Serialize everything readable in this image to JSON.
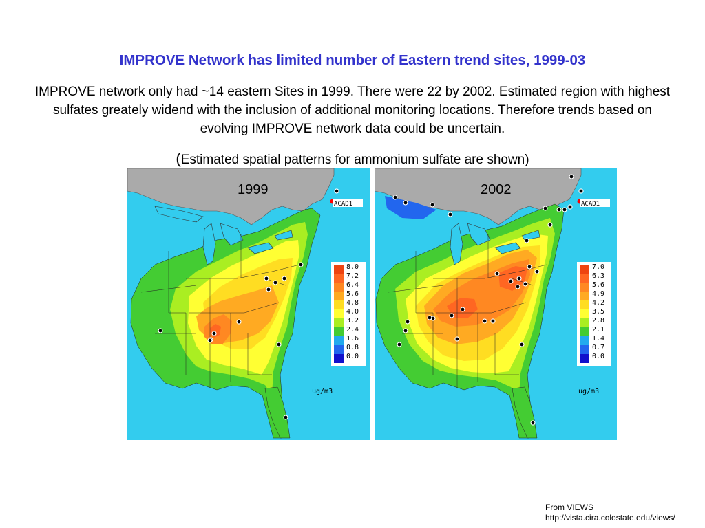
{
  "slide": {
    "title": "IMPROVE Network has limited number of Eastern trend sites, 1999-03",
    "body": "IMPROVE network only had ~14 eastern Sites in 1999. There were 22 by 2002.  Estimated region with highest sulfates greately widend with the inclusion of additional monitoring locations. Therefore trends based on evolving IMPROVE network data could be uncertain.",
    "caption_open": "(",
    "caption_text": "Estimated spatial patterns for ammonium sulfate are shown",
    "caption_close": ")",
    "source_line1": "From VIEWS",
    "source_line2": "http://vista.cira.colostate.edu/views/"
  },
  "maps": [
    {
      "year": "1999",
      "site_label": "ACAD1",
      "unit": "ug/m3",
      "legend": [
        {
          "label": "8.0",
          "color": "#ee4411"
        },
        {
          "label": "7.2",
          "color": "#ff6622"
        },
        {
          "label": "6.4",
          "color": "#ff8822"
        },
        {
          "label": "5.6",
          "color": "#ffaa22"
        },
        {
          "label": "4.8",
          "color": "#ffdd22"
        },
        {
          "label": "4.0",
          "color": "#ffff33"
        },
        {
          "label": "3.2",
          "color": "#aaee22"
        },
        {
          "label": "2.4",
          "color": "#44cc33"
        },
        {
          "label": "1.6",
          "color": "#22aaee"
        },
        {
          "label": "0.8",
          "color": "#2266ee"
        },
        {
          "label": "0.0",
          "color": "#1111cc"
        }
      ]
    },
    {
      "year": "2002",
      "site_label": "ACAD1",
      "unit": "ug/m3",
      "legend": [
        {
          "label": "7.0",
          "color": "#ee4411"
        },
        {
          "label": "6.3",
          "color": "#ff6622"
        },
        {
          "label": "5.6",
          "color": "#ff8822"
        },
        {
          "label": "4.9",
          "color": "#ffaa22"
        },
        {
          "label": "4.2",
          "color": "#ffdd22"
        },
        {
          "label": "3.5",
          "color": "#ffff33"
        },
        {
          "label": "2.8",
          "color": "#aaee22"
        },
        {
          "label": "2.1",
          "color": "#44cc33"
        },
        {
          "label": "1.4",
          "color": "#22aaee"
        },
        {
          "label": "0.7",
          "color": "#2266ee"
        },
        {
          "label": "0.0",
          "color": "#1111cc"
        }
      ]
    }
  ],
  "colors": {
    "title": "#3333cc",
    "ocean": "#33ccee",
    "canada": "#aaaaaa",
    "site_marker": "#ff0000"
  }
}
